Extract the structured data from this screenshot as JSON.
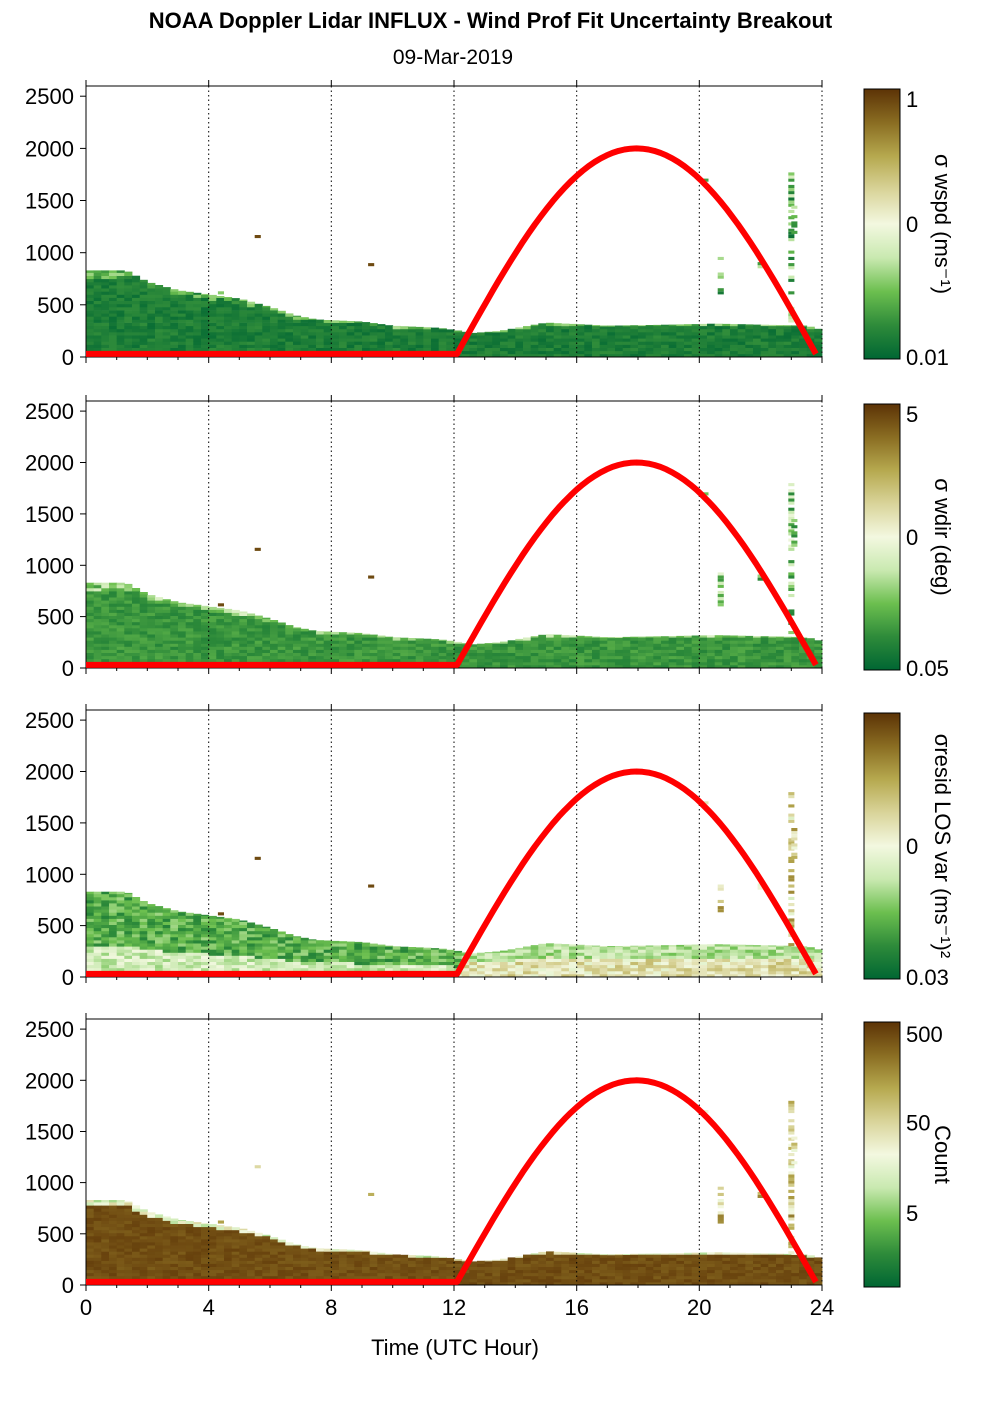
{
  "figure": {
    "title": "NOAA Doppler Lidar INFLUX - Wind Prof Fit Uncertainty Breakout",
    "subtitle": "09-Mar-2019",
    "xlabel": "Time (UTC Hour)"
  },
  "colors": {
    "colormap": [
      "#006633",
      "#2e8b3a",
      "#6cbf4f",
      "#c9e9b0",
      "#f3f8e0",
      "#d9d49a",
      "#b6a94f",
      "#8a6d22",
      "#5c3306"
    ],
    "sun_curve": "#ff0000",
    "background_fill": "#ffffff"
  },
  "chart_data": [
    {
      "type": "heatmap",
      "panel": "sigma-wspd",
      "colorbar_label": "σ wspd (ms⁻¹)",
      "colorbar_ticks": [
        "1",
        "0",
        "0.01"
      ],
      "xlim": [
        0,
        24
      ],
      "ylim": [
        0,
        2550
      ],
      "x_ticks": [
        "0",
        "4",
        "8",
        "12",
        "16",
        "20",
        "24"
      ],
      "y_ticks": [
        "0",
        "500",
        "1000",
        "1500",
        "2000",
        "2500"
      ],
      "grid_x": [
        4,
        8,
        12,
        16,
        20,
        24
      ],
      "base": 0.03,
      "sun_curve": {
        "rise_hour": 12.1,
        "set_hour": 23.8,
        "peak_value": 2000,
        "baseline": 30
      }
    },
    {
      "type": "heatmap",
      "panel": "sigma-wdir",
      "colorbar_label": "σ wdir (deg)",
      "colorbar_ticks": [
        "5",
        "0",
        "0.05"
      ],
      "xlim": [
        0,
        24
      ],
      "ylim": [
        0,
        2550
      ],
      "x_ticks": [
        "0",
        "4",
        "8",
        "12",
        "16",
        "20",
        "24"
      ],
      "y_ticks": [
        "0",
        "500",
        "1000",
        "1500",
        "2000",
        "2500"
      ],
      "grid_x": [
        4,
        8,
        12,
        16,
        20,
        24
      ],
      "base": 0.1,
      "sun_curve": {
        "rise_hour": 12.1,
        "set_hour": 23.8,
        "peak_value": 2000,
        "baseline": 30
      }
    },
    {
      "type": "heatmap",
      "panel": "sigma-resid-los-var",
      "colorbar_label": "σresid LOS var (ms⁻¹)²",
      "colorbar_ticks": [
        "0",
        "0.03"
      ],
      "xlim": [
        0,
        24
      ],
      "ylim": [
        0,
        2550
      ],
      "x_ticks": [
        "0",
        "4",
        "8",
        "12",
        "16",
        "20",
        "24"
      ],
      "y_ticks": [
        "0",
        "500",
        "1000",
        "1500",
        "2000",
        "2500"
      ],
      "grid_x": [
        4,
        8,
        12,
        16,
        20,
        24
      ],
      "base": 0.42,
      "sun_curve": {
        "rise_hour": 12.1,
        "set_hour": 23.8,
        "peak_value": 2000,
        "baseline": 30
      }
    },
    {
      "type": "heatmap",
      "panel": "count",
      "colorbar_label": "Count",
      "colorbar_ticks": [
        "500",
        "50",
        "5"
      ],
      "xlim": [
        0,
        24
      ],
      "ylim": [
        0,
        2550
      ],
      "x_ticks": [
        "0",
        "4",
        "8",
        "12",
        "16",
        "20",
        "24"
      ],
      "y_ticks": [
        "0",
        "500",
        "1000",
        "1500",
        "2000",
        "2500"
      ],
      "grid_x": [
        4,
        8,
        12,
        16,
        20,
        24
      ],
      "base": 0.97,
      "sun_curve": {
        "rise_hour": 12.1,
        "set_hour": 23.8,
        "peak_value": 2000,
        "baseline": 30
      }
    }
  ]
}
